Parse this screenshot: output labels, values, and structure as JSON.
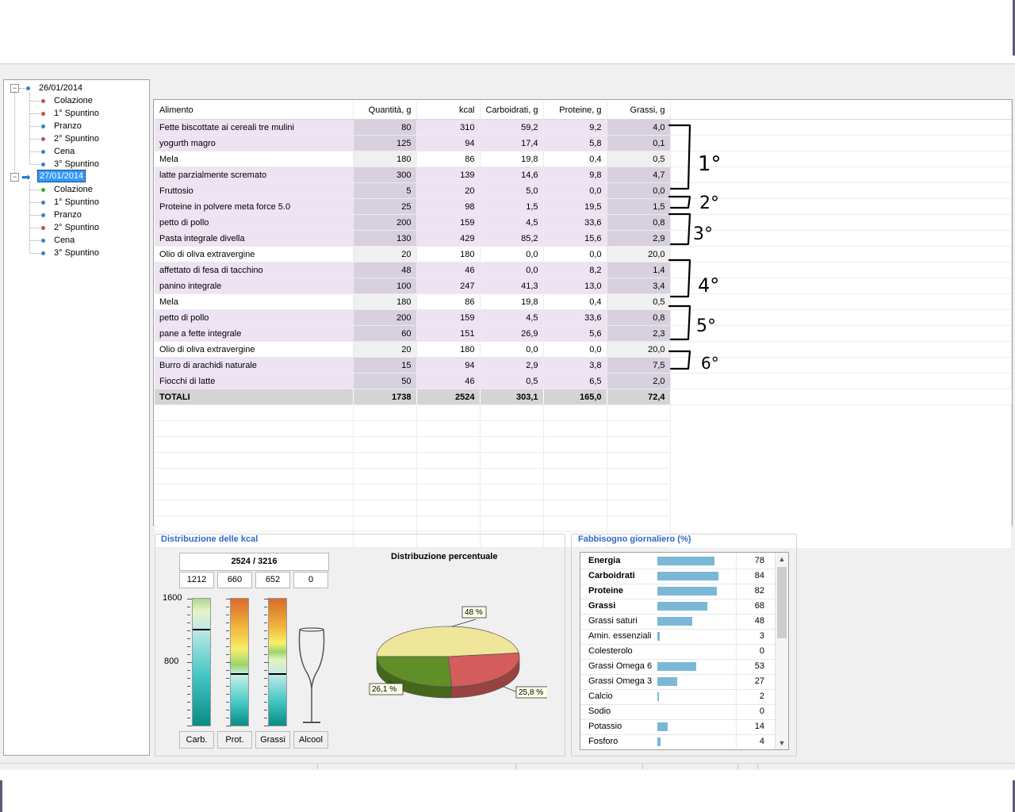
{
  "tree": {
    "days": [
      {
        "date": "26/01/2014",
        "meals": [
          {
            "label": "Colazione",
            "color": "#c0504d"
          },
          {
            "label": "1° Spuntino",
            "color": "#c0504d"
          },
          {
            "label": "Pranzo",
            "color": "#3a7fc4"
          },
          {
            "label": "2° Spuntino",
            "color": "#c0504d"
          },
          {
            "label": "Cena",
            "color": "#3a7fc4"
          },
          {
            "label": "3° Spuntino",
            "color": "#3a7fc4"
          }
        ]
      },
      {
        "date": "27/01/2014",
        "selected": true,
        "meals": [
          {
            "label": "Colazione",
            "color": "#2eaa2e"
          },
          {
            "label": "1° Spuntino",
            "color": "#3a7fc4"
          },
          {
            "label": "Pranzo",
            "color": "#3a7fc4"
          },
          {
            "label": "2° Spuntino",
            "color": "#c0504d"
          },
          {
            "label": "Cena",
            "color": "#3a7fc4"
          },
          {
            "label": "3° Spuntino",
            "color": "#3a7fc4"
          }
        ]
      }
    ]
  },
  "grid": {
    "headers": [
      "Alimento",
      "Quantità, g",
      "kcal",
      "Carboidrati, g",
      "Proteine, g",
      "Grassi, g"
    ],
    "rows": [
      [
        "Fette biscottate ai cereali tre mulini",
        "80",
        "310",
        "59,2",
        "9,2",
        "4,0"
      ],
      [
        "yogurth magro",
        "125",
        "94",
        "17,4",
        "5,8",
        "0,1"
      ],
      [
        "Mela",
        "180",
        "86",
        "19,8",
        "0,4",
        "0,5"
      ],
      [
        "latte parzialmente scremato",
        "300",
        "139",
        "14,6",
        "9,8",
        "4,7"
      ],
      [
        "Fruttosio",
        "5",
        "20",
        "5,0",
        "0,0",
        "0,0"
      ],
      [
        "Proteine in polvere meta force 5.0",
        "25",
        "98",
        "1,5",
        "19,5",
        "1,5"
      ],
      [
        "petto di pollo",
        "200",
        "159",
        "4,5",
        "33,6",
        "0,8"
      ],
      [
        "Pasta integrale divella",
        "130",
        "429",
        "85,2",
        "15,6",
        "2,9"
      ],
      [
        "Olio di oliva extravergine",
        "20",
        "180",
        "0,0",
        "0,0",
        "20,0"
      ],
      [
        "affettato di fesa di tacchino",
        "48",
        "46",
        "0,0",
        "8,2",
        "1,4"
      ],
      [
        "panino integrale",
        "100",
        "247",
        "41,3",
        "13,0",
        "3,4"
      ],
      [
        "Mela",
        "180",
        "86",
        "19,8",
        "0,4",
        "0,5"
      ],
      [
        "petto di pollo",
        "200",
        "159",
        "4,5",
        "33,6",
        "0,8"
      ],
      [
        "pane  a fette integrale",
        "60",
        "151",
        "26,9",
        "5,6",
        "2,3"
      ],
      [
        "Olio di oliva extravergine",
        "20",
        "180",
        "0,0",
        "0,0",
        "20,0"
      ],
      [
        "Burro di arachidi naturale",
        "15",
        "94",
        "2,9",
        "3,8",
        "7,5"
      ],
      [
        "Fiocchi di latte",
        "50",
        "46",
        "0,5",
        "6,5",
        "2,0"
      ]
    ],
    "row_style": [
      "pur",
      "pur",
      "wht",
      "pur",
      "pur",
      "pur",
      "pur",
      "pur",
      "wht",
      "pur",
      "pur",
      "wht",
      "pur",
      "pur",
      "wht",
      "pur",
      "pur"
    ],
    "totals": [
      "TOTALI",
      "1738",
      "2524",
      "303,1",
      "165,0",
      "72,4"
    ]
  },
  "annotations": [
    "1°",
    "2°",
    "3°",
    "4°",
    "5°",
    "6°"
  ],
  "kcal_panel": {
    "title": "Distribuzione delle kcal",
    "total": "2524 / 3216",
    "parts": [
      "1212",
      "660",
      "652",
      "0"
    ],
    "scale_labels": [
      "1600",
      "800"
    ],
    "carb_level": 0.76,
    "prot_level": 0.41,
    "fat_level": 0.41,
    "legend": [
      "Carb.",
      "Prot.",
      "Grassi",
      "Alcool"
    ],
    "legend_colors": [
      "#efe38f",
      "#d9605a",
      "#5e8c2a",
      "#f6ecd8"
    ]
  },
  "chart_data": {
    "type": "pie",
    "title": "Distribuzione percentuale",
    "values": [
      48,
      26.1,
      25.8
    ],
    "labels": [
      "48 %",
      "26,1 %",
      "25,8 %"
    ],
    "colors": [
      "#efe69a",
      "#d45c5c",
      "#5f8f26"
    ]
  },
  "needs_panel": {
    "title": "Fabbisogno giornaliero (%)",
    "items": [
      {
        "name": "Energia",
        "value": 78,
        "bold": true
      },
      {
        "name": "Carboidrati",
        "value": 84,
        "bold": true
      },
      {
        "name": "Proteine",
        "value": 82,
        "bold": true
      },
      {
        "name": "Grassi",
        "value": 68,
        "bold": true
      },
      {
        "name": "Grassi saturi",
        "value": 48
      },
      {
        "name": "Amin. essenziali",
        "value": 3
      },
      {
        "name": "Colesterolo",
        "value": 0
      },
      {
        "name": "Grassi Omega 6",
        "value": 53
      },
      {
        "name": "Grassi Omega 3",
        "value": 27
      },
      {
        "name": "Calcio",
        "value": 2
      },
      {
        "name": "Sodio",
        "value": 0
      },
      {
        "name": "Potassio",
        "value": 14
      },
      {
        "name": "Fosforo",
        "value": 4
      }
    ]
  }
}
